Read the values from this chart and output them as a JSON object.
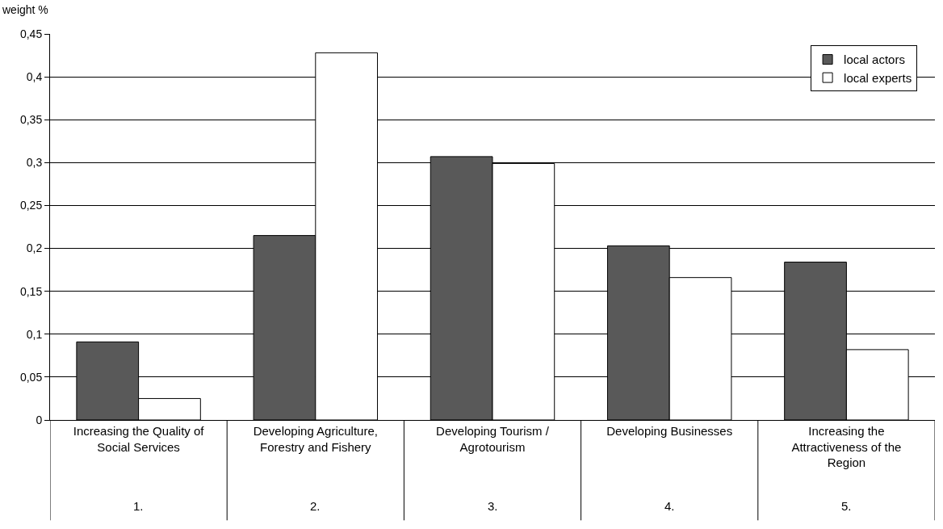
{
  "chart_data": {
    "type": "bar",
    "ylabel": "weight %",
    "categories": [
      "Increasing the Quality of Social Services",
      "Developing Agriculture, Forestry and Fishery",
      "Developing Tourism / Agrotourism",
      "Developing Businesses",
      "Increasing the Attractiveness of the Region"
    ],
    "series": [
      {
        "name": "local actors",
        "color": "#595959",
        "values": [
          0.091,
          0.215,
          0.307,
          0.203,
          0.184
        ]
      },
      {
        "name": "local experts",
        "color": "#ffffff",
        "values": [
          0.025,
          0.428,
          0.299,
          0.166,
          0.082
        ]
      }
    ],
    "ylim": [
      0,
      0.45
    ],
    "yticks": [
      0,
      {
        "value": 0.05,
        "label": "0,05"
      },
      {
        "value": 0.1,
        "label": "0,1"
      },
      {
        "value": 0.15,
        "label": "0,15"
      },
      {
        "value": 0.2,
        "label": "0,2"
      },
      {
        "value": 0.25,
        "label": "0,25"
      },
      {
        "value": 0.3,
        "label": "0,3"
      },
      {
        "value": 0.35,
        "label": "0,35"
      },
      {
        "value": 0.4,
        "label": "0,4"
      },
      {
        "value": 0.45,
        "label": "0,45"
      }
    ],
    "annotations": [
      "1.",
      "2.",
      "3.",
      "4.",
      "5."
    ],
    "grid": "y",
    "legend": "top right"
  }
}
